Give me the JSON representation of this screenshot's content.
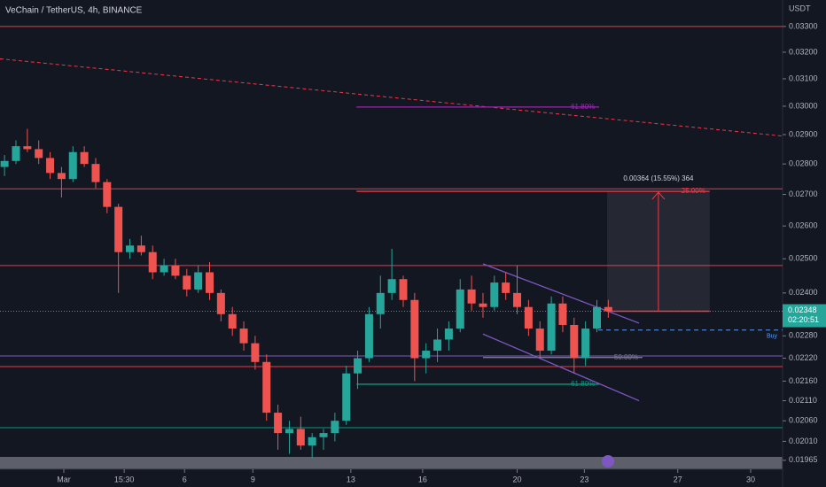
{
  "chart_data": {
    "type": "candlestick",
    "title": "VeChain / TetherUS, 4h, BINANCE",
    "currency": "USDT",
    "up_color": "#26a69a",
    "down_color": "#ef5350",
    "log_scale": true,
    "x": [
      0,
      1,
      2,
      3,
      4,
      5,
      6,
      7,
      8,
      9,
      10,
      11,
      12,
      13,
      14,
      15,
      16,
      17,
      18,
      19,
      20,
      21,
      22,
      23,
      24,
      25,
      26,
      27,
      28,
      29,
      30,
      31,
      32,
      33,
      34,
      35,
      36,
      37,
      38,
      39,
      40,
      41,
      42,
      43,
      44,
      45,
      46,
      47,
      48,
      49,
      50,
      51,
      52,
      53
    ],
    "open": [
      0.0279,
      0.0281,
      0.0286,
      0.0285,
      0.0282,
      0.0277,
      0.0275,
      0.0284,
      0.028,
      0.0274,
      0.0266,
      0.0252,
      0.0254,
      0.0252,
      0.0246,
      0.0248,
      0.0245,
      0.0241,
      0.0246,
      0.024,
      0.0234,
      0.023,
      0.0226,
      0.0221,
      0.0208,
      0.0203,
      0.0204,
      0.02,
      0.0202,
      0.0203,
      0.0206,
      0.0218,
      0.0222,
      0.0234,
      0.024,
      0.0244,
      0.0238,
      0.0222,
      0.0224,
      0.0227,
      0.023,
      0.0241,
      0.0237,
      0.0236,
      0.0243,
      0.024,
      0.0236,
      0.023,
      0.0224,
      0.0237,
      0.0231,
      0.0222,
      0.023,
      0.0236
    ],
    "high": [
      0.0283,
      0.0288,
      0.0292,
      0.0288,
      0.0284,
      0.0279,
      0.0286,
      0.0286,
      0.0282,
      0.0275,
      0.0267,
      0.0256,
      0.0257,
      0.0254,
      0.025,
      0.025,
      0.0247,
      0.0248,
      0.0249,
      0.0241,
      0.0236,
      0.0232,
      0.0228,
      0.0223,
      0.021,
      0.0206,
      0.0207,
      0.0203,
      0.0204,
      0.0208,
      0.022,
      0.0224,
      0.0236,
      0.0245,
      0.0253,
      0.0245,
      0.024,
      0.0226,
      0.023,
      0.0232,
      0.0244,
      0.0245,
      0.024,
      0.0245,
      0.0246,
      0.0248,
      0.0238,
      0.0232,
      0.0239,
      0.0239,
      0.0233,
      0.0232,
      0.0238,
      0.0238
    ],
    "low": [
      0.0276,
      0.028,
      0.0284,
      0.028,
      0.0275,
      0.0269,
      0.0274,
      0.0279,
      0.0272,
      0.0264,
      0.024,
      0.025,
      0.0251,
      0.0244,
      0.0245,
      0.0244,
      0.0239,
      0.024,
      0.0238,
      0.0232,
      0.0228,
      0.0224,
      0.0219,
      0.0206,
      0.0199,
      0.0198,
      0.0199,
      0.0197,
      0.0199,
      0.0201,
      0.0205,
      0.0214,
      0.0221,
      0.023,
      0.0238,
      0.0236,
      0.0216,
      0.0218,
      0.0221,
      0.0224,
      0.0229,
      0.0235,
      0.0233,
      0.0235,
      0.0238,
      0.0234,
      0.0228,
      0.0222,
      0.0223,
      0.0229,
      0.0218,
      0.022,
      0.0229,
      0.0233
    ],
    "close": [
      0.0281,
      0.0286,
      0.0285,
      0.0282,
      0.0277,
      0.0275,
      0.0284,
      0.028,
      0.0274,
      0.0266,
      0.0252,
      0.0254,
      0.0252,
      0.0246,
      0.0248,
      0.0245,
      0.0241,
      0.0246,
      0.024,
      0.0234,
      0.023,
      0.0226,
      0.0221,
      0.0208,
      0.0203,
      0.0204,
      0.02,
      0.0202,
      0.0203,
      0.0206,
      0.0218,
      0.0222,
      0.0234,
      0.024,
      0.0244,
      0.0238,
      0.0222,
      0.0224,
      0.0227,
      0.023,
      0.0241,
      0.0237,
      0.0236,
      0.0243,
      0.024,
      0.0236,
      0.023,
      0.0224,
      0.0237,
      0.0231,
      0.0222,
      0.023,
      0.0236,
      0.02348
    ],
    "xlim": [
      -0.4,
      68.3
    ],
    "ylim": [
      0.01944,
      0.03406
    ],
    "xticks": [
      {
        "value": 5.2,
        "label": "Mar"
      },
      {
        "value": 10.5,
        "label": "15:30"
      },
      {
        "value": 15.8,
        "label": "6"
      },
      {
        "value": 21.8,
        "label": "9"
      },
      {
        "value": 30.4,
        "label": "13"
      },
      {
        "value": 36.7,
        "label": "16"
      },
      {
        "value": 45,
        "label": "20"
      },
      {
        "value": 50.9,
        "label": "23"
      },
      {
        "value": 59.1,
        "label": "27"
      },
      {
        "value": 65.5,
        "label": "30"
      }
    ],
    "yticks": [
      {
        "value": 0.033,
        "label": "0.03300"
      },
      {
        "value": 0.032,
        "label": "0.03200"
      },
      {
        "value": 0.031,
        "label": "0.03100"
      },
      {
        "value": 0.03,
        "label": "0.03000"
      },
      {
        "value": 0.029,
        "label": "0.02900"
      },
      {
        "value": 0.028,
        "label": "0.02800"
      },
      {
        "value": 0.027,
        "label": "0.02700"
      },
      {
        "value": 0.026,
        "label": "0.02600"
      },
      {
        "value": 0.025,
        "label": "0.02500"
      },
      {
        "value": 0.024,
        "label": "0.02400"
      },
      {
        "value": 0.0228,
        "label": "0.02280"
      },
      {
        "value": 0.0222,
        "label": "0.02220"
      },
      {
        "value": 0.0216,
        "label": "0.02160"
      },
      {
        "value": 0.0211,
        "label": "0.02110"
      },
      {
        "value": 0.0206,
        "label": "0.02060"
      },
      {
        "value": 0.0201,
        "label": "0.02010"
      },
      {
        "value": 0.01965,
        "label": "0.01965"
      }
    ],
    "levels": [
      {
        "price": 0.033,
        "color": "#f23645"
      },
      {
        "price": 0.02718,
        "color": "#f23645"
      },
      {
        "price": 0.0248,
        "color": "#f23645"
      },
      {
        "price": 0.02198,
        "color": "#f23645"
      },
      {
        "price": 0.02043,
        "color": "#089981"
      },
      {
        "price": 0.02226,
        "color": "#7e57c2"
      }
    ],
    "segments": [
      {
        "x": [
          30.9,
          52.2
        ],
        "y": [
          0.02997,
          0.02997
        ],
        "color": "#9c27b0",
        "label": "61.80%"
      },
      {
        "x": [
          30.9,
          61.9
        ],
        "y": [
          0.0271,
          0.0271
        ],
        "color": "#f23645",
        "label": "25.00%"
      },
      {
        "x": [
          30.9,
          52.2
        ],
        "y": [
          0.02152,
          0.02152
        ],
        "color": "#089981",
        "label": "61.80%"
      },
      {
        "x": [
          42,
          56
        ],
        "y": [
          0.02222,
          0.02222
        ],
        "color": "#787b86",
        "label": "50.00%"
      }
    ],
    "channel": [
      {
        "x": [
          42,
          55.7
        ],
        "y": [
          0.02485,
          0.02315
        ]
      },
      {
        "x": [
          42,
          55.7
        ],
        "y": [
          0.02285,
          0.0211
        ]
      }
    ],
    "trendline": {
      "x": [
        -0.4,
        68.3
      ],
      "y": [
        0.03175,
        0.02895
      ]
    },
    "position": {
      "x": [
        52.9,
        61.9
      ],
      "entry": 0.02348,
      "target": 0.0271,
      "label": "0.00364 (15.55%) 364"
    },
    "order": {
      "price": 0.02296,
      "label": "Buy"
    },
    "countdown": "02:20:51"
  }
}
